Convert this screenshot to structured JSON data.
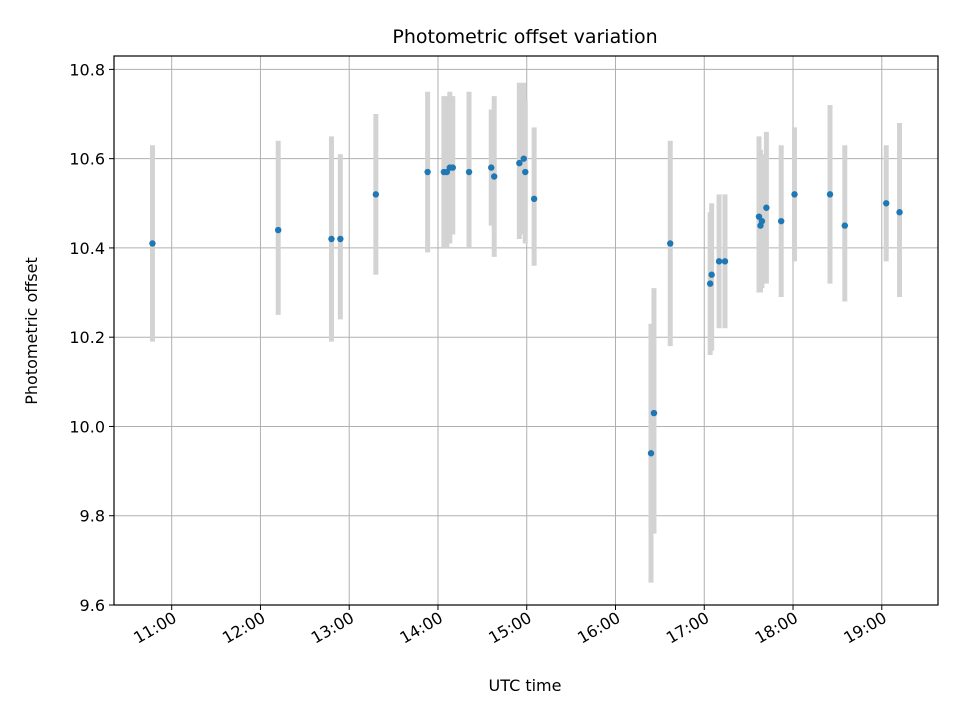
{
  "chart_data": {
    "type": "scatter",
    "title": "Photometric offset variation",
    "xlabel": "UTC time",
    "ylabel": "Photometric offset",
    "xlim": [
      "10:21",
      "19:38"
    ],
    "ylim": [
      9.6,
      10.83
    ],
    "x_ticks": [
      "11:00",
      "12:00",
      "13:00",
      "14:00",
      "15:00",
      "16:00",
      "17:00",
      "18:00",
      "19:00"
    ],
    "y_ticks": [
      "9.6",
      "9.8",
      "10.0",
      "10.2",
      "10.4",
      "10.6",
      "10.8"
    ],
    "grid": true,
    "colors": {
      "point": "#1f77b4",
      "errorbar": "#d3d3d3",
      "grid": "#b0b0b0"
    },
    "points": [
      {
        "t": "10:47",
        "y": 10.41,
        "lo": 10.19,
        "hi": 10.63
      },
      {
        "t": "12:12",
        "y": 10.44,
        "lo": 10.25,
        "hi": 10.64
      },
      {
        "t": "12:48",
        "y": 10.42,
        "lo": 10.19,
        "hi": 10.65
      },
      {
        "t": "12:54",
        "y": 10.42,
        "lo": 10.24,
        "hi": 10.61
      },
      {
        "t": "13:18",
        "y": 10.52,
        "lo": 10.34,
        "hi": 10.7
      },
      {
        "t": "13:53",
        "y": 10.57,
        "lo": 10.39,
        "hi": 10.75
      },
      {
        "t": "14:04",
        "y": 10.57,
        "lo": 10.4,
        "hi": 10.74
      },
      {
        "t": "14:06",
        "y": 10.57,
        "lo": 10.4,
        "hi": 10.74
      },
      {
        "t": "14:08",
        "y": 10.58,
        "lo": 10.41,
        "hi": 10.75
      },
      {
        "t": "14:10",
        "y": 10.58,
        "lo": 10.43,
        "hi": 10.74
      },
      {
        "t": "14:21",
        "y": 10.57,
        "lo": 10.4,
        "hi": 10.75
      },
      {
        "t": "14:36",
        "y": 10.58,
        "lo": 10.45,
        "hi": 10.71
      },
      {
        "t": "14:38",
        "y": 10.56,
        "lo": 10.38,
        "hi": 10.74
      },
      {
        "t": "14:55",
        "y": 10.59,
        "lo": 10.42,
        "hi": 10.77
      },
      {
        "t": "14:58",
        "y": 10.6,
        "lo": 10.43,
        "hi": 10.77
      },
      {
        "t": "14:59",
        "y": 10.57,
        "lo": 10.41,
        "hi": 10.73
      },
      {
        "t": "15:05",
        "y": 10.51,
        "lo": 10.36,
        "hi": 10.67
      },
      {
        "t": "16:24",
        "y": 9.94,
        "lo": 9.65,
        "hi": 10.23
      },
      {
        "t": "16:26",
        "y": 10.03,
        "lo": 9.76,
        "hi": 10.31
      },
      {
        "t": "16:37",
        "y": 10.41,
        "lo": 10.18,
        "hi": 10.64
      },
      {
        "t": "17:04",
        "y": 10.32,
        "lo": 10.16,
        "hi": 10.48
      },
      {
        "t": "17:05",
        "y": 10.34,
        "lo": 10.17,
        "hi": 10.5
      },
      {
        "t": "17:10",
        "y": 10.37,
        "lo": 10.22,
        "hi": 10.52
      },
      {
        "t": "17:14",
        "y": 10.37,
        "lo": 10.22,
        "hi": 10.52
      },
      {
        "t": "17:37",
        "y": 10.47,
        "lo": 10.3,
        "hi": 10.65
      },
      {
        "t": "17:38",
        "y": 10.45,
        "lo": 10.3,
        "hi": 10.62
      },
      {
        "t": "17:39",
        "y": 10.46,
        "lo": 10.31,
        "hi": 10.61
      },
      {
        "t": "17:42",
        "y": 10.49,
        "lo": 10.32,
        "hi": 10.66
      },
      {
        "t": "17:52",
        "y": 10.46,
        "lo": 10.29,
        "hi": 10.63
      },
      {
        "t": "18:01",
        "y": 10.52,
        "lo": 10.37,
        "hi": 10.67
      },
      {
        "t": "18:25",
        "y": 10.52,
        "lo": 10.32,
        "hi": 10.72
      },
      {
        "t": "18:35",
        "y": 10.45,
        "lo": 10.28,
        "hi": 10.63
      },
      {
        "t": "19:03",
        "y": 10.5,
        "lo": 10.37,
        "hi": 10.63
      },
      {
        "t": "19:12",
        "y": 10.48,
        "lo": 10.29,
        "hi": 10.68
      }
    ]
  }
}
